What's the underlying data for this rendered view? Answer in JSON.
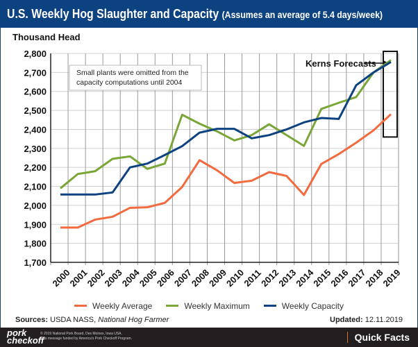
{
  "header": {
    "title": "U.S. Weekly Hog Slaughter and Capacity",
    "subtitle": "(Assumes an average of 5.4 days/week)"
  },
  "chart_data": {
    "type": "line",
    "ylabel": "Thousand Head",
    "ylim": [
      1700,
      2800
    ],
    "yticks": [
      "1,700",
      "1,800",
      "1,900",
      "2,000",
      "2,100",
      "2,200",
      "2,300",
      "2,400",
      "2,500",
      "2,600",
      "2,700",
      "2,800"
    ],
    "grid": true,
    "categories": [
      "2000",
      "2001",
      "2002",
      "2003",
      "2004",
      "2005",
      "2006",
      "2007",
      "2008",
      "2009",
      "2010",
      "2011",
      "2012",
      "2013",
      "2014",
      "2015",
      "2016",
      "2017",
      "2018",
      "2019"
    ],
    "series": [
      {
        "name": "Weekly Average",
        "color": "#f26a3d",
        "values": [
          1883,
          1883,
          1925,
          1940,
          1987,
          1990,
          2013,
          2097,
          2238,
          2185,
          2118,
          2130,
          2175,
          2155,
          2055,
          2218,
          2270,
          2330,
          2395,
          2480
        ]
      },
      {
        "name": "Weekly Maximum",
        "color": "#7aa637",
        "values": [
          2090,
          2165,
          2180,
          2245,
          2258,
          2192,
          2220,
          2477,
          2430,
          2390,
          2342,
          2370,
          2427,
          2370,
          2313,
          2508,
          2540,
          2570,
          2700,
          2765
        ]
      },
      {
        "name": "Weekly Capacity",
        "color": "#0d4280",
        "values": [
          2057,
          2057,
          2057,
          2068,
          2200,
          2220,
          2265,
          2312,
          2383,
          2403,
          2403,
          2353,
          2370,
          2400,
          2437,
          2460,
          2455,
          2632,
          2700,
          2755
        ]
      }
    ],
    "annotations": [
      "Small plants were omitted from the capacity computations until 2004",
      "Kerns Forecasts"
    ],
    "forecast_year": "2019",
    "legend": "bottom"
  },
  "footer": {
    "sources_label": "Sources:",
    "sources": "USDA NASS,",
    "sources_italic": "National Hog Farmer",
    "updated_label": "Updated:",
    "updated": "12.11.2019",
    "logo": "pork checkoff",
    "copyright": "© 2019 National Pork Board, Des Moines, Iowa USA.",
    "funded": "This message funded by America's Pork Checkoff Program.",
    "quick_facts": "Quick Facts"
  }
}
